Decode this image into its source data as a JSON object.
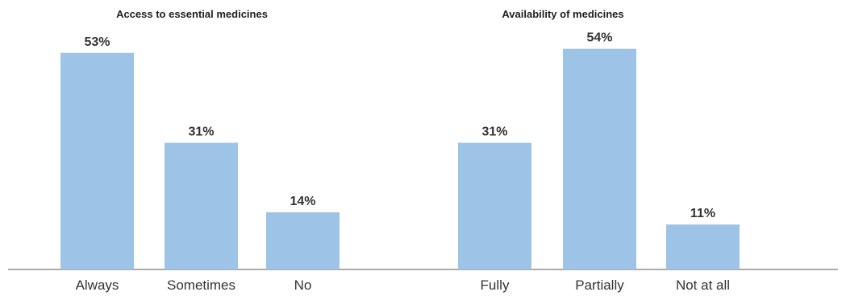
{
  "chart_data": [
    {
      "type": "bar",
      "title": "Access to essential medicines",
      "categories": [
        "Always",
        "Sometimes",
        "No"
      ],
      "values": [
        53,
        31,
        14
      ],
      "value_labels": [
        "53%",
        "31%",
        "14%"
      ],
      "ylim": [
        0,
        60
      ],
      "grid": false,
      "bar_color": "#9dc3e6"
    },
    {
      "type": "bar",
      "title": "Availability of medicines",
      "categories": [
        "Fully",
        "Partially",
        "Not at all"
      ],
      "values": [
        31,
        54,
        11
      ],
      "value_labels": [
        "31%",
        "54%",
        "11%"
      ],
      "ylim": [
        0,
        60
      ],
      "grid": false,
      "bar_color": "#9dc3e6"
    }
  ],
  "colors": {
    "bar": "#9dc3e6",
    "axis": "#555555",
    "text": "#333333"
  }
}
